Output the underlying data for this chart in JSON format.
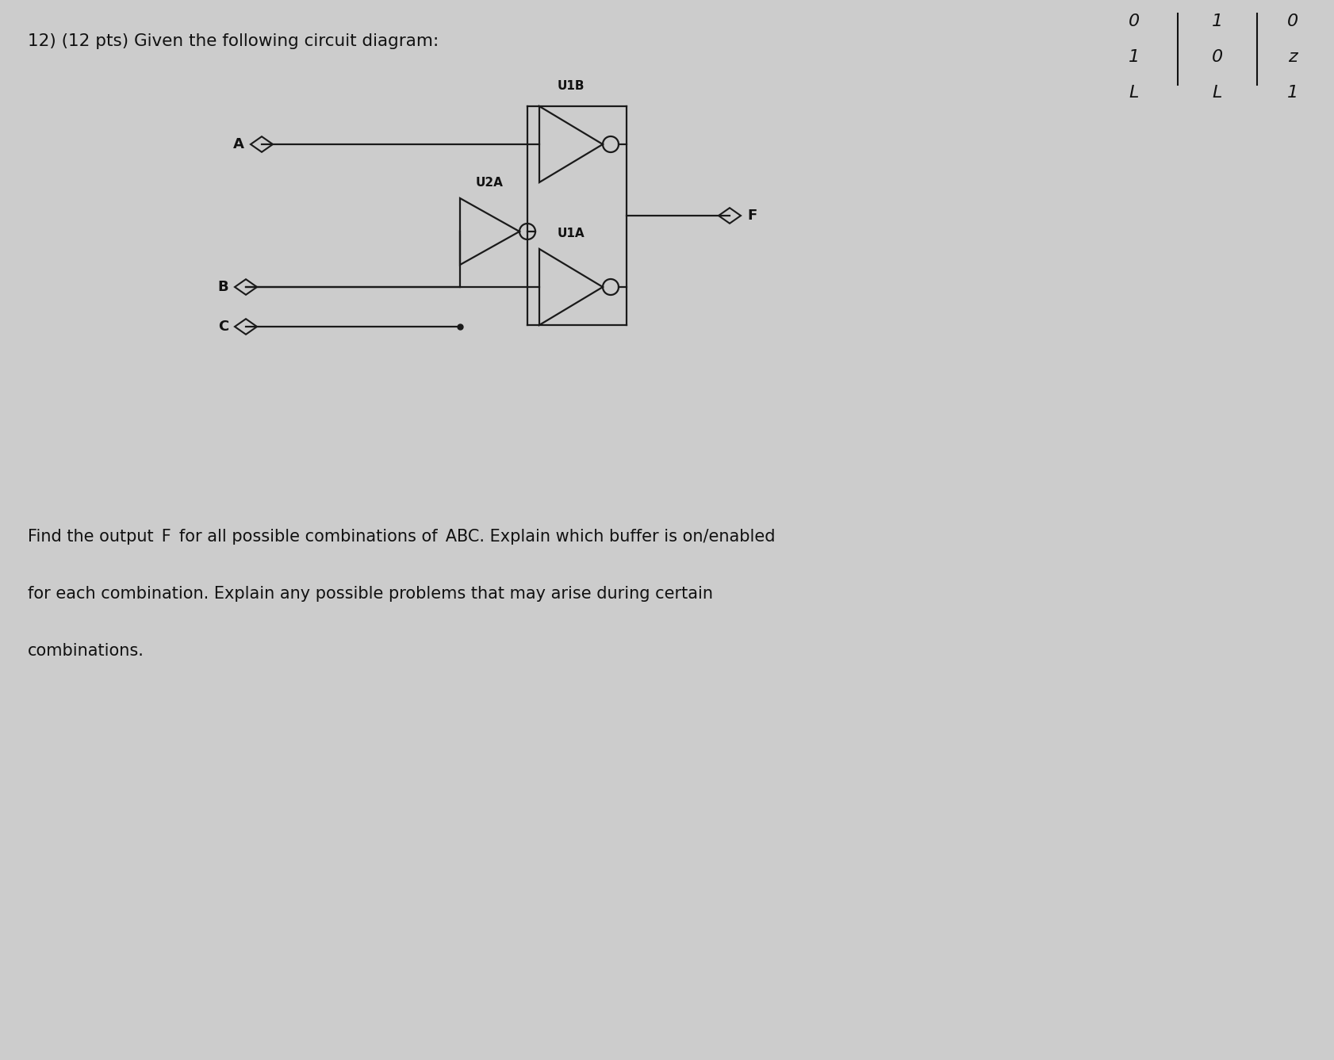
{
  "title": "12) (12 pts) Given the following circuit diagram:",
  "title_fontsize": 15.5,
  "body_text_line1": "Find the output  F  for all possible combinations of  ABC. Explain which buffer is on/enabled",
  "body_text_line2": "for each combination. Explain any possible problems that may arise during certain",
  "body_text_line3": "combinations.",
  "body_fontsize": 15,
  "background_color": "#cccccc",
  "label_A": "A",
  "label_B": "B",
  "label_C": "C",
  "label_F": "F",
  "label_U1B": "U1B",
  "label_U2A": "U2A",
  "label_U1A": "U1A",
  "line_color": "#1a1a1a",
  "text_color": "#111111",
  "corner_text": [
    "0",
    "1",
    "0",
    "1",
    "0",
    "z",
    "L",
    "L",
    "1"
  ]
}
